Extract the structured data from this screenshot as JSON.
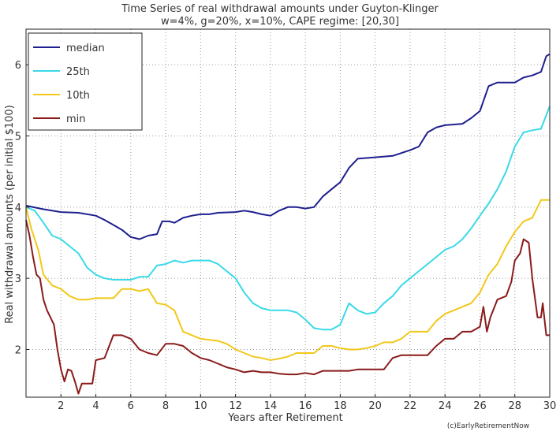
{
  "chart_data": {
    "type": "line",
    "title": "Time Series of real withdrawal amounts under Guyton-Klinger",
    "subtitle": "w=4%, g=20%, x=10%, CAPE regime: [20,30]",
    "xlabel": "Years after Retirement",
    "ylabel": "Real withdrawal amounts (per initial $100)",
    "xlim": [
      0,
      30
    ],
    "ylim": [
      1.33,
      6.5
    ],
    "xticks": [
      2,
      4,
      6,
      8,
      10,
      12,
      14,
      16,
      18,
      20,
      22,
      24,
      26,
      28,
      30
    ],
    "yticks": [
      2,
      3,
      4,
      5,
      6
    ],
    "grid": true,
    "legend_position": "top-left",
    "credit": "(c)EarlyRetirementNow",
    "series": [
      {
        "name": "median",
        "color": "#1f1f8f",
        "points": [
          [
            0,
            4.02
          ],
          [
            1,
            3.97
          ],
          [
            2,
            3.93
          ],
          [
            3,
            3.92
          ],
          [
            4,
            3.88
          ],
          [
            4.5,
            3.82
          ],
          [
            5,
            3.75
          ],
          [
            5.5,
            3.68
          ],
          [
            6,
            3.58
          ],
          [
            6.5,
            3.55
          ],
          [
            7,
            3.6
          ],
          [
            7.5,
            3.62
          ],
          [
            7.8,
            3.8
          ],
          [
            8.2,
            3.8
          ],
          [
            8.5,
            3.78
          ],
          [
            9,
            3.85
          ],
          [
            9.5,
            3.88
          ],
          [
            10,
            3.9
          ],
          [
            10.5,
            3.9
          ],
          [
            11,
            3.92
          ],
          [
            12,
            3.93
          ],
          [
            12.5,
            3.95
          ],
          [
            13,
            3.93
          ],
          [
            13.5,
            3.9
          ],
          [
            14,
            3.88
          ],
          [
            14.5,
            3.95
          ],
          [
            15,
            4.0
          ],
          [
            15.5,
            4.0
          ],
          [
            16,
            3.98
          ],
          [
            16.5,
            4.0
          ],
          [
            17,
            4.15
          ],
          [
            17.5,
            4.25
          ],
          [
            18,
            4.35
          ],
          [
            18.5,
            4.55
          ],
          [
            19,
            4.68
          ],
          [
            20,
            4.7
          ],
          [
            21,
            4.72
          ],
          [
            22,
            4.8
          ],
          [
            22.5,
            4.85
          ],
          [
            23,
            5.05
          ],
          [
            23.5,
            5.12
          ],
          [
            24,
            5.15
          ],
          [
            25,
            5.17
          ],
          [
            25.5,
            5.25
          ],
          [
            26,
            5.35
          ],
          [
            26.5,
            5.7
          ],
          [
            27,
            5.75
          ],
          [
            28,
            5.75
          ],
          [
            28.5,
            5.82
          ],
          [
            29,
            5.85
          ],
          [
            29.5,
            5.9
          ],
          [
            29.8,
            6.12
          ],
          [
            30,
            6.15
          ]
        ]
      },
      {
        "name": "25th",
        "color": "#3ad9e8",
        "points": [
          [
            0,
            4.0
          ],
          [
            0.5,
            3.95
          ],
          [
            1,
            3.78
          ],
          [
            1.5,
            3.6
          ],
          [
            2,
            3.55
          ],
          [
            2.5,
            3.45
          ],
          [
            3,
            3.35
          ],
          [
            3.5,
            3.15
          ],
          [
            4,
            3.05
          ],
          [
            4.5,
            3.0
          ],
          [
            5,
            2.98
          ],
          [
            6,
            2.98
          ],
          [
            6.5,
            3.02
          ],
          [
            7,
            3.02
          ],
          [
            7.5,
            3.18
          ],
          [
            8,
            3.2
          ],
          [
            8.5,
            3.25
          ],
          [
            9,
            3.22
          ],
          [
            9.5,
            3.25
          ],
          [
            10,
            3.25
          ],
          [
            10.5,
            3.25
          ],
          [
            11,
            3.2
          ],
          [
            11.5,
            3.1
          ],
          [
            12,
            3.0
          ],
          [
            12.5,
            2.8
          ],
          [
            13,
            2.65
          ],
          [
            13.5,
            2.58
          ],
          [
            14,
            2.55
          ],
          [
            14.5,
            2.55
          ],
          [
            15,
            2.55
          ],
          [
            15.5,
            2.52
          ],
          [
            16,
            2.42
          ],
          [
            16.5,
            2.3
          ],
          [
            17,
            2.28
          ],
          [
            17.5,
            2.28
          ],
          [
            18,
            2.35
          ],
          [
            18.5,
            2.65
          ],
          [
            19,
            2.55
          ],
          [
            19.5,
            2.5
          ],
          [
            20,
            2.52
          ],
          [
            20.5,
            2.65
          ],
          [
            21,
            2.75
          ],
          [
            21.5,
            2.9
          ],
          [
            22,
            3.0
          ],
          [
            22.5,
            3.1
          ],
          [
            23,
            3.2
          ],
          [
            23.5,
            3.3
          ],
          [
            24,
            3.4
          ],
          [
            24.5,
            3.45
          ],
          [
            25,
            3.55
          ],
          [
            25.5,
            3.7
          ],
          [
            26,
            3.88
          ],
          [
            26.5,
            4.05
          ],
          [
            27,
            4.25
          ],
          [
            27.5,
            4.5
          ],
          [
            28,
            4.85
          ],
          [
            28.5,
            5.05
          ],
          [
            29,
            5.08
          ],
          [
            29.5,
            5.1
          ],
          [
            30,
            5.42
          ]
        ]
      },
      {
        "name": "10th",
        "color": "#f2c81a",
        "points": [
          [
            0,
            4.0
          ],
          [
            0.3,
            3.7
          ],
          [
            0.7,
            3.4
          ],
          [
            1,
            3.05
          ],
          [
            1.5,
            2.9
          ],
          [
            2,
            2.85
          ],
          [
            2.5,
            2.75
          ],
          [
            3,
            2.7
          ],
          [
            3.5,
            2.7
          ],
          [
            4,
            2.72
          ],
          [
            4.5,
            2.72
          ],
          [
            5,
            2.72
          ],
          [
            5.5,
            2.85
          ],
          [
            6,
            2.85
          ],
          [
            6.5,
            2.82
          ],
          [
            7,
            2.85
          ],
          [
            7.5,
            2.65
          ],
          [
            8,
            2.63
          ],
          [
            8.5,
            2.55
          ],
          [
            9,
            2.25
          ],
          [
            9.5,
            2.2
          ],
          [
            10,
            2.15
          ],
          [
            11,
            2.12
          ],
          [
            11.5,
            2.08
          ],
          [
            12,
            2.0
          ],
          [
            12.5,
            1.95
          ],
          [
            13,
            1.9
          ],
          [
            13.5,
            1.88
          ],
          [
            14,
            1.85
          ],
          [
            14.5,
            1.87
          ],
          [
            15,
            1.9
          ],
          [
            15.5,
            1.95
          ],
          [
            16,
            1.95
          ],
          [
            16.5,
            1.95
          ],
          [
            17,
            2.05
          ],
          [
            17.5,
            2.05
          ],
          [
            18,
            2.02
          ],
          [
            18.5,
            2.0
          ],
          [
            19,
            2.0
          ],
          [
            19.5,
            2.02
          ],
          [
            20,
            2.05
          ],
          [
            20.5,
            2.1
          ],
          [
            21,
            2.1
          ],
          [
            21.5,
            2.15
          ],
          [
            22,
            2.25
          ],
          [
            23,
            2.25
          ],
          [
            23.5,
            2.4
          ],
          [
            24,
            2.5
          ],
          [
            24.5,
            2.55
          ],
          [
            25,
            2.6
          ],
          [
            25.5,
            2.65
          ],
          [
            26,
            2.8
          ],
          [
            26.5,
            3.05
          ],
          [
            27,
            3.2
          ],
          [
            27.5,
            3.45
          ],
          [
            28,
            3.65
          ],
          [
            28.5,
            3.8
          ],
          [
            29,
            3.85
          ],
          [
            29.5,
            4.1
          ],
          [
            30,
            4.1
          ]
        ]
      },
      {
        "name": "min",
        "color": "#8b1a1a",
        "points": [
          [
            0,
            3.82
          ],
          [
            0.2,
            3.6
          ],
          [
            0.4,
            3.3
          ],
          [
            0.6,
            3.05
          ],
          [
            0.8,
            3.0
          ],
          [
            1,
            2.7
          ],
          [
            1.2,
            2.55
          ],
          [
            1.4,
            2.45
          ],
          [
            1.6,
            2.35
          ],
          [
            1.8,
            2.0
          ],
          [
            2,
            1.72
          ],
          [
            2.2,
            1.55
          ],
          [
            2.4,
            1.72
          ],
          [
            2.6,
            1.7
          ],
          [
            2.8,
            1.55
          ],
          [
            3,
            1.38
          ],
          [
            3.2,
            1.52
          ],
          [
            3.5,
            1.52
          ],
          [
            3.8,
            1.52
          ],
          [
            4,
            1.85
          ],
          [
            4.5,
            1.88
          ],
          [
            5,
            2.2
          ],
          [
            5.5,
            2.2
          ],
          [
            6,
            2.15
          ],
          [
            6.5,
            2.0
          ],
          [
            7,
            1.95
          ],
          [
            7.5,
            1.92
          ],
          [
            8,
            2.08
          ],
          [
            8.5,
            2.08
          ],
          [
            9,
            2.05
          ],
          [
            9.5,
            1.95
          ],
          [
            10,
            1.88
          ],
          [
            10.5,
            1.85
          ],
          [
            11,
            1.8
          ],
          [
            11.5,
            1.75
          ],
          [
            12,
            1.72
          ],
          [
            12.5,
            1.68
          ],
          [
            13,
            1.7
          ],
          [
            13.5,
            1.68
          ],
          [
            14,
            1.68
          ],
          [
            14.5,
            1.66
          ],
          [
            15,
            1.65
          ],
          [
            15.5,
            1.65
          ],
          [
            16,
            1.67
          ],
          [
            16.5,
            1.65
          ],
          [
            17,
            1.7
          ],
          [
            17.5,
            1.7
          ],
          [
            18,
            1.7
          ],
          [
            18.5,
            1.7
          ],
          [
            19,
            1.72
          ],
          [
            20,
            1.72
          ],
          [
            20.5,
            1.72
          ],
          [
            21,
            1.88
          ],
          [
            21.5,
            1.92
          ],
          [
            22,
            1.92
          ],
          [
            23,
            1.92
          ],
          [
            23.5,
            2.05
          ],
          [
            24,
            2.15
          ],
          [
            24.5,
            2.15
          ],
          [
            25,
            2.25
          ],
          [
            25.5,
            2.25
          ],
          [
            26,
            2.32
          ],
          [
            26.2,
            2.6
          ],
          [
            26.4,
            2.25
          ],
          [
            26.6,
            2.45
          ],
          [
            27,
            2.7
          ],
          [
            27.5,
            2.75
          ],
          [
            27.8,
            2.95
          ],
          [
            28,
            3.25
          ],
          [
            28.3,
            3.35
          ],
          [
            28.5,
            3.55
          ],
          [
            28.8,
            3.5
          ],
          [
            29,
            3.0
          ],
          [
            29.3,
            2.45
          ],
          [
            29.5,
            2.45
          ],
          [
            29.6,
            2.65
          ],
          [
            29.8,
            2.2
          ],
          [
            30,
            2.2
          ]
        ]
      }
    ]
  }
}
